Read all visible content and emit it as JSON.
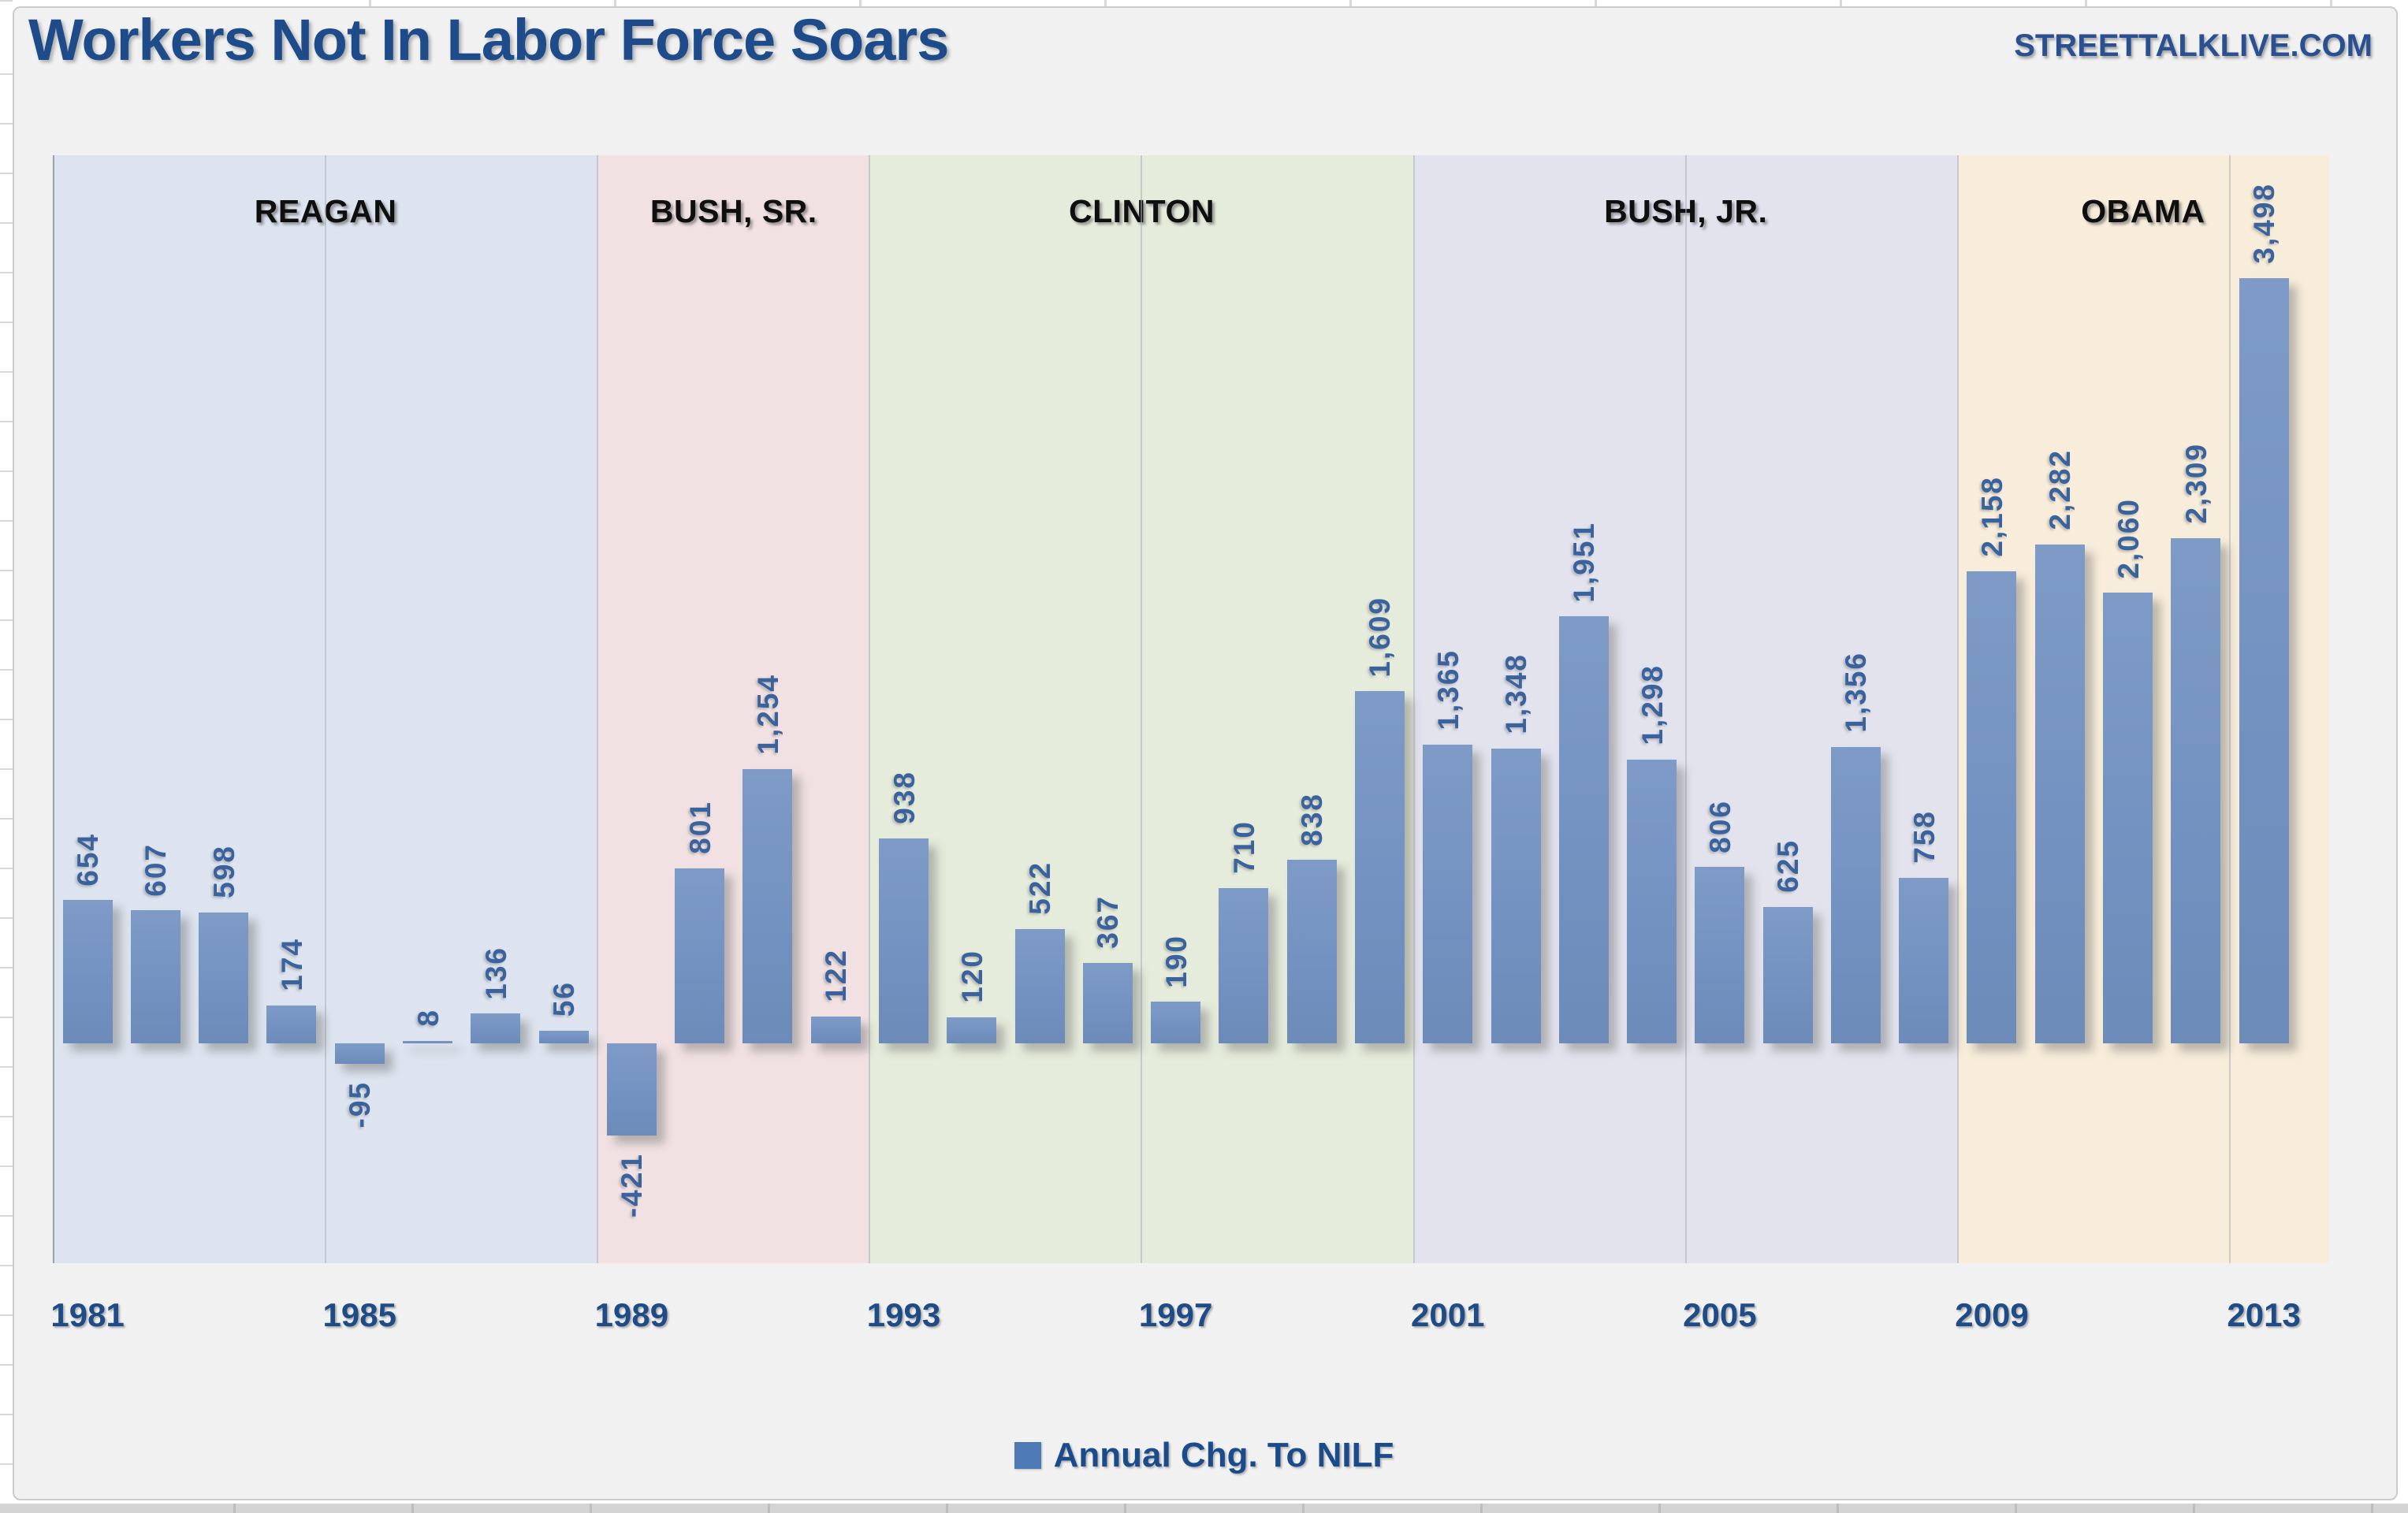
{
  "header": {
    "title": "Workers Not In Labor Force Soars",
    "watermark": "STREETTALKLIVE.COM"
  },
  "legend": {
    "label": "Annual Chg. To NILF",
    "swatch_color": "#4d7ab4"
  },
  "colors": {
    "page_bg": "#ffffff",
    "chart_bg": "#f1f1f1",
    "chart_border": "#cbcbcb",
    "title_color": "#1e4b8a",
    "watermark_color": "#2a5091",
    "tick_color": "#1f4b86",
    "era_label_color": "#0f0f0f",
    "bar_color": "#7492c1",
    "value_label_color": "#3a639e",
    "gridline_color": "#aab1bd"
  },
  "chart_data": {
    "type": "bar",
    "title": "Workers Not In Labor Force Soars",
    "series_name": "Annual Chg. To NILF",
    "xlabel": "",
    "ylabel": "",
    "grid": true,
    "legend_position": "bottom",
    "x": [
      1981,
      1982,
      1983,
      1984,
      1985,
      1986,
      1987,
      1988,
      1989,
      1990,
      1991,
      1992,
      1993,
      1994,
      1995,
      1996,
      1997,
      1998,
      1999,
      2000,
      2001,
      2002,
      2003,
      2004,
      2005,
      2006,
      2007,
      2008,
      2009,
      2010,
      2011,
      2012,
      2013
    ],
    "values": [
      654,
      607,
      598,
      174,
      -95,
      8,
      136,
      56,
      -421,
      801,
      1254,
      122,
      938,
      120,
      522,
      367,
      190,
      710,
      838,
      1609,
      1365,
      1348,
      1951,
      1298,
      806,
      625,
      1356,
      758,
      2158,
      2282,
      2060,
      2309,
      3498
    ],
    "x_tick_labels": [
      "1981",
      "1985",
      "1989",
      "1993",
      "1997",
      "2001",
      "2005",
      "2009",
      "2013"
    ],
    "gridline_years": [
      1985,
      1989,
      1993,
      1997,
      2001,
      2005,
      2009,
      2013
    ],
    "ylim": [
      -500,
      3600
    ],
    "eras": [
      {
        "label": "REAGAN",
        "start_year": 1981,
        "end_year": 1988,
        "color": "#dde4ef"
      },
      {
        "label": "BUSH, SR.",
        "start_year": 1989,
        "end_year": 1992,
        "color": "#f1e1e2"
      },
      {
        "label": "CLINTON",
        "start_year": 1993,
        "end_year": 2000,
        "color": "#e6ecdc"
      },
      {
        "label": "BUSH, JR.",
        "start_year": 2001,
        "end_year": 2008,
        "color": "#e3e3ee"
      },
      {
        "label": "OBAMA",
        "start_year": 2009,
        "end_year": 2013,
        "color": "#f8edda"
      }
    ]
  }
}
